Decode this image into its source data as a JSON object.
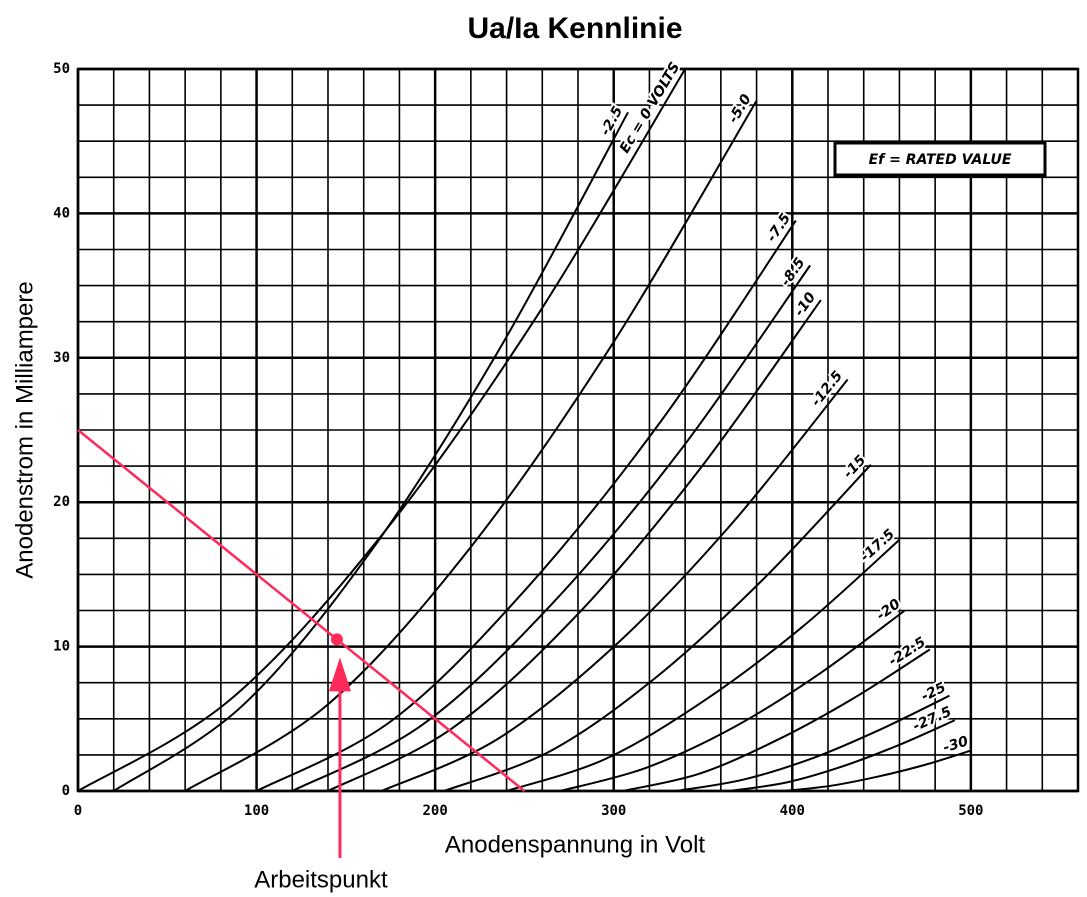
{
  "chart_data": {
    "type": "line",
    "title": "Ua/Ia Kennlinie",
    "x_label": "Anodenspannung in Volt",
    "y_label": "Anodenstrom in Milliampere",
    "note": "Ef = RATED VALUE",
    "xlim": [
      0,
      560
    ],
    "ylim": [
      0,
      50
    ],
    "xticks": [
      0,
      100,
      200,
      300,
      400,
      500
    ],
    "yticks": [
      0,
      10,
      20,
      30,
      40,
      50
    ],
    "grid": true,
    "xgrid_step": 20,
    "ygrid_step": 2.5,
    "color": "#000000",
    "series": [
      {
        "name": "Ec = 0 VOLTS",
        "x": [
          0,
          85,
          170,
          255,
          340
        ],
        "values": [
          0,
          6.3,
          17.7,
          32.5,
          50
        ]
      },
      {
        "name": "-2.5",
        "x": [
          20,
          92,
          164,
          236,
          308
        ],
        "values": [
          0,
          5.9,
          16.6,
          30.6,
          47
        ]
      },
      {
        "name": "-5.0",
        "x": [
          60,
          140,
          220,
          300,
          380
        ],
        "values": [
          0,
          6,
          16.9,
          31.1,
          47.8
        ]
      },
      {
        "name": "-7.5",
        "x": [
          100,
          176,
          251,
          327,
          402
        ],
        "values": [
          0,
          4.9,
          14,
          25.7,
          39.5
        ]
      },
      {
        "name": "-8.5",
        "x": [
          120,
          193,
          265,
          338,
          410
        ],
        "values": [
          0,
          4.6,
          12.9,
          23.7,
          36.4
        ]
      },
      {
        "name": "-10",
        "x": [
          140,
          209,
          278,
          347,
          416
        ],
        "values": [
          0,
          4.3,
          12,
          22.1,
          34
        ]
      },
      {
        "name": "-12.5",
        "x": [
          170,
          235,
          301,
          366,
          431
        ],
        "values": [
          0,
          3.6,
          10.1,
          18.5,
          28.5
        ]
      },
      {
        "name": "-15",
        "x": [
          205,
          265,
          325,
          384,
          444
        ],
        "values": [
          0,
          2.8,
          8,
          14.7,
          22.6
        ]
      },
      {
        "name": "-17.5",
        "x": [
          240,
          295,
          350,
          405,
          460
        ],
        "values": [
          0,
          2.2,
          6.2,
          11.3,
          17.4
        ]
      },
      {
        "name": "-20",
        "x": [
          270,
          318,
          367,
          415,
          463
        ],
        "values": [
          0,
          1.6,
          4.4,
          8.1,
          12.5
        ]
      },
      {
        "name": "-22.5",
        "x": [
          305,
          348,
          391,
          434,
          477
        ],
        "values": [
          0,
          1.2,
          3.5,
          6.4,
          9.8
        ]
      },
      {
        "name": "-25",
        "x": [
          335,
          373,
          412,
          450,
          488
        ],
        "values": [
          0,
          0.8,
          2.3,
          4.3,
          6.6
        ]
      },
      {
        "name": "-27.5",
        "x": [
          365,
          397,
          428,
          460,
          491
        ],
        "values": [
          0,
          0.6,
          1.7,
          3.2,
          4.9
        ]
      },
      {
        "name": "-30",
        "x": [
          395,
          421,
          448,
          474,
          500
        ],
        "values": [
          0,
          0.35,
          1,
          1.8,
          2.8
        ]
      }
    ],
    "load_line": {
      "color": "#ff2a5a",
      "x": [
        0,
        250
      ],
      "values": [
        25,
        0
      ]
    },
    "operating_point": {
      "label": "Arbeitspunkt",
      "x": 145,
      "y": 10.5
    }
  }
}
